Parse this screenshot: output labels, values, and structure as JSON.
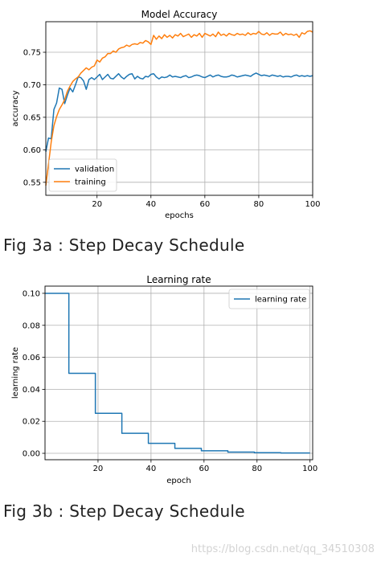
{
  "captions": {
    "fig3a": "Fig 3a : Step Decay Schedule",
    "fig3b": "Fig 3b : Step Decay Schedule"
  },
  "watermark": "https://blog.csdn.net/qq_34510308",
  "colors": {
    "blue": "#1f77b4",
    "orange": "#ff7f0e",
    "grid": "#b0b0b0"
  },
  "chart_data": [
    {
      "type": "line",
      "title": "Model Accuracy",
      "xlabel": "epochs",
      "ylabel": "accuracy",
      "xlim": [
        1,
        100
      ],
      "ylim": [
        0.53,
        0.797
      ],
      "xticks": [
        20,
        40,
        60,
        80,
        100
      ],
      "yticks": [
        0.55,
        0.6,
        0.65,
        0.7,
        0.75
      ],
      "grid": true,
      "legend_position": "lower-left",
      "series": [
        {
          "name": "validation",
          "color": "#1f77b4",
          "x": [
            1,
            2,
            3,
            4,
            5,
            6,
            7,
            8,
            9,
            10,
            11,
            12,
            13,
            14,
            15,
            16,
            17,
            18,
            19,
            20,
            21,
            22,
            23,
            24,
            25,
            26,
            27,
            28,
            29,
            30,
            31,
            32,
            33,
            34,
            35,
            36,
            37,
            38,
            39,
            40,
            41,
            42,
            43,
            44,
            45,
            46,
            47,
            48,
            49,
            50,
            51,
            52,
            53,
            54,
            55,
            56,
            57,
            58,
            59,
            60,
            61,
            62,
            63,
            64,
            65,
            66,
            67,
            68,
            69,
            70,
            71,
            72,
            73,
            74,
            75,
            76,
            77,
            78,
            79,
            80,
            81,
            82,
            83,
            84,
            85,
            86,
            87,
            88,
            89,
            90,
            91,
            92,
            93,
            94,
            95,
            96,
            97,
            98,
            99,
            100
          ],
          "values": [
            0.597,
            0.618,
            0.617,
            0.662,
            0.672,
            0.695,
            0.693,
            0.671,
            0.684,
            0.695,
            0.689,
            0.7,
            0.712,
            0.711,
            0.706,
            0.693,
            0.708,
            0.711,
            0.708,
            0.712,
            0.716,
            0.708,
            0.712,
            0.716,
            0.71,
            0.709,
            0.713,
            0.717,
            0.712,
            0.709,
            0.713,
            0.716,
            0.717,
            0.709,
            0.713,
            0.71,
            0.709,
            0.713,
            0.712,
            0.716,
            0.717,
            0.712,
            0.709,
            0.712,
            0.711,
            0.712,
            0.715,
            0.712,
            0.713,
            0.712,
            0.711,
            0.713,
            0.714,
            0.711,
            0.712,
            0.714,
            0.715,
            0.714,
            0.712,
            0.711,
            0.713,
            0.715,
            0.712,
            0.714,
            0.715,
            0.713,
            0.712,
            0.712,
            0.713,
            0.715,
            0.714,
            0.712,
            0.713,
            0.714,
            0.715,
            0.714,
            0.713,
            0.716,
            0.718,
            0.716,
            0.714,
            0.715,
            0.714,
            0.713,
            0.715,
            0.714,
            0.713,
            0.714,
            0.712,
            0.713,
            0.713,
            0.712,
            0.714,
            0.715,
            0.713,
            0.714,
            0.713,
            0.714,
            0.713,
            0.714
          ]
        },
        {
          "name": "training",
          "color": "#ff7f0e",
          "x": [
            1,
            2,
            3,
            4,
            5,
            6,
            7,
            8,
            9,
            10,
            11,
            12,
            13,
            14,
            15,
            16,
            17,
            18,
            19,
            20,
            21,
            22,
            23,
            24,
            25,
            26,
            27,
            28,
            29,
            30,
            31,
            32,
            33,
            34,
            35,
            36,
            37,
            38,
            39,
            40,
            41,
            42,
            43,
            44,
            45,
            46,
            47,
            48,
            49,
            50,
            51,
            52,
            53,
            54,
            55,
            56,
            57,
            58,
            59,
            60,
            61,
            62,
            63,
            64,
            65,
            66,
            67,
            68,
            69,
            70,
            71,
            72,
            73,
            74,
            75,
            76,
            77,
            78,
            79,
            80,
            81,
            82,
            83,
            84,
            85,
            86,
            87,
            88,
            89,
            90,
            91,
            92,
            93,
            94,
            95,
            96,
            97,
            98,
            99,
            100
          ],
          "values": [
            0.545,
            0.578,
            0.612,
            0.637,
            0.651,
            0.662,
            0.669,
            0.677,
            0.69,
            0.698,
            0.705,
            0.709,
            0.712,
            0.718,
            0.722,
            0.726,
            0.723,
            0.727,
            0.729,
            0.738,
            0.735,
            0.741,
            0.743,
            0.748,
            0.748,
            0.752,
            0.75,
            0.755,
            0.757,
            0.758,
            0.761,
            0.759,
            0.762,
            0.763,
            0.762,
            0.765,
            0.764,
            0.768,
            0.766,
            0.762,
            0.776,
            0.77,
            0.775,
            0.771,
            0.777,
            0.773,
            0.776,
            0.772,
            0.777,
            0.775,
            0.779,
            0.774,
            0.776,
            0.778,
            0.773,
            0.777,
            0.775,
            0.779,
            0.773,
            0.779,
            0.777,
            0.775,
            0.778,
            0.774,
            0.781,
            0.776,
            0.778,
            0.775,
            0.779,
            0.777,
            0.776,
            0.779,
            0.777,
            0.778,
            0.776,
            0.78,
            0.777,
            0.779,
            0.778,
            0.782,
            0.778,
            0.777,
            0.78,
            0.776,
            0.779,
            0.778,
            0.778,
            0.781,
            0.776,
            0.779,
            0.777,
            0.778,
            0.776,
            0.778,
            0.773,
            0.78,
            0.778,
            0.782,
            0.783,
            0.781
          ]
        }
      ]
    },
    {
      "type": "line",
      "title": "Learning rate",
      "xlabel": "epoch",
      "ylabel": "learning rate",
      "xlim": [
        0,
        101
      ],
      "ylim": [
        -0.004,
        0.1045
      ],
      "xticks": [
        20,
        40,
        60,
        80,
        100
      ],
      "yticks": [
        "0.00",
        "0.02",
        "0.04",
        "0.06",
        "0.08",
        "0.10"
      ],
      "ytick_values": [
        0,
        0.02,
        0.04,
        0.06,
        0.08,
        0.1
      ],
      "grid": true,
      "legend_position": "top-right",
      "series": [
        {
          "name": "learning rate",
          "color": "#1f77b4",
          "x": [
            0,
            9,
            9,
            19,
            19,
            29,
            29,
            39,
            39,
            49,
            49,
            59,
            59,
            69,
            69,
            79,
            79,
            89,
            89,
            100
          ],
          "values": [
            0.1,
            0.1,
            0.05,
            0.05,
            0.025,
            0.025,
            0.0125,
            0.0125,
            0.00625,
            0.00625,
            0.003125,
            0.003125,
            0.0015625,
            0.0015625,
            0.00078125,
            0.00078125,
            0.000390625,
            0.000390625,
            0.0001953125,
            0.0001953125
          ]
        }
      ]
    }
  ]
}
